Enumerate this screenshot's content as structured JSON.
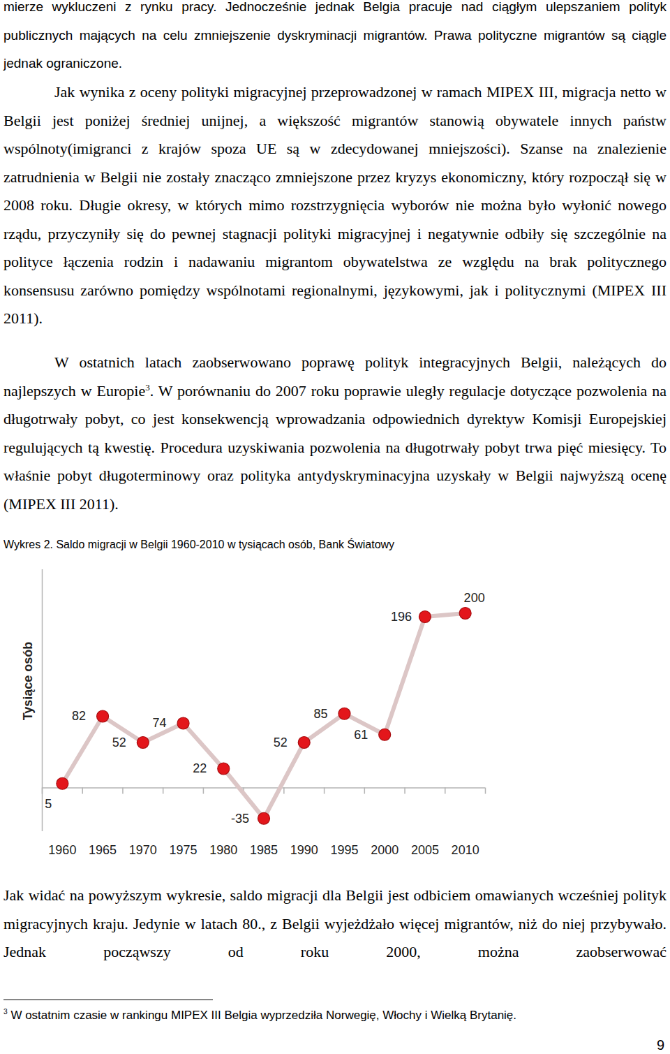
{
  "paragraphs": [
    {
      "text": "mierze wykluczeni z rynku pracy. Jednocześnie jednak Belgia pracuje nad ciągłym ulepszaniem polityk publicznych mających na celu zmniejszenie dyskryminacji migrantów. Prawa polityczne migrantów są ciągle jednak ograniczone."
    },
    {
      "text": "Jak wynika z oceny polityki migracyjnej przeprowadzonej w ramach MIPEX III, migracja netto w Belgii jest poniżej średniej unijnej, a większość migrantów stanowią obywatele innych państw wspólnoty(imigranci z krajów spoza UE są w zdecydowanej mniejszości). Szanse na znalezienie zatrudnienia w Belgii nie zostały znacząco zmniejszone przez kryzys ekonomiczny, który rozpoczął się w 2008 roku. Długie okresy, w których mimo rozstrzygnięcia wyborów nie można było wyłonić nowego rządu, przyczyniły się do pewnej stagnacji polityki migracyjnej i negatywnie odbiły się szczególnie na polityce łączenia rodzin i nadawaniu migrantom obywatelstwa ze względu na brak politycznego konsensusu zarówno pomiędzy wspólnotami regionalnymi, językowymi, jak i politycznymi (MIPEX III 2011)."
    },
    {
      "text": "W ostatnich latach zaobserwowano poprawę polityk integracyjnych Belgii, należących do najlepszych w Europie",
      "footnote_ref": "3",
      "text_after": ". W porównaniu do 2007 roku poprawie uległy regulacje dotyczące pozwolenia na długotrwały pobyt, co jest konsekwencją wprowadzania odpowiednich dyrektyw Komisji Europejskiej regulujących tą kwestię. Procedura uzyskiwania pozwolenia na długotrwały pobyt trwa pięć miesięcy. To właśnie pobyt długoterminowy oraz polityka antydyskryminacyjna uzyskały w Belgii najwyższą ocenę (MIPEX III 2011)."
    }
  ],
  "chart_data": {
    "type": "line",
    "title": "Wykres 2. Saldo migracji w Belgii 1960-2010 w tysiącach osób, Bank Światowy",
    "y_label": "Tysiące osób",
    "x": [
      1960,
      1965,
      1970,
      1975,
      1980,
      1985,
      1990,
      1995,
      2000,
      2005,
      2010
    ],
    "values": [
      5,
      82,
      52,
      74,
      22,
      -35,
      52,
      85,
      61,
      196,
      200
    ],
    "color": "#e3161b",
    "marker": "circle",
    "data_labels": true,
    "xlim": [
      1957.5,
      2012.5
    ],
    "xticks": [
      1960,
      1965,
      1970,
      1975,
      1980,
      1985,
      1990,
      1995,
      2000,
      2005,
      2010
    ],
    "ylim": [
      -50,
      250
    ],
    "yticks": [],
    "tick_labels": "x"
  },
  "paragraphs_after_chart": [
    {
      "text": "Jak widać na powyższym wykresie, saldo migracji dla Belgii jest odbiciem omawianych wcześniej polityk migracyjnych kraju. Jedynie w latach 80., z Belgii wyjeżdżało więcej migrantów, niż do niej przybywało. Jednak począwszy od roku 2000, można zaobserwować"
    }
  ],
  "footnotes": [
    {
      "marker": "3",
      "text": "W ostatnim czasie w rankingu MIPEX III Belgia wyprzedziła Norwegię, Włochy i Wielką Brytanię."
    }
  ],
  "page_number": 9
}
